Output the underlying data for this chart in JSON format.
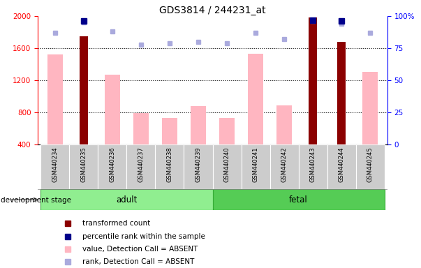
{
  "title": "GDS3814 / 244231_at",
  "samples": [
    "GSM440234",
    "GSM440235",
    "GSM440236",
    "GSM440237",
    "GSM440238",
    "GSM440239",
    "GSM440240",
    "GSM440241",
    "GSM440242",
    "GSM440243",
    "GSM440244",
    "GSM440245"
  ],
  "transformed_count": [
    null,
    1750,
    null,
    null,
    null,
    null,
    null,
    null,
    null,
    1980,
    1680,
    null
  ],
  "pct_rank_present": [
    null,
    96,
    null,
    null,
    null,
    null,
    null,
    null,
    null,
    97,
    96,
    null
  ],
  "value_absent": [
    1520,
    null,
    1270,
    790,
    730,
    880,
    730,
    1530,
    890,
    null,
    null,
    1310
  ],
  "rank_absent": [
    87,
    95,
    88,
    78,
    79,
    80,
    79,
    87,
    82,
    96,
    94,
    87
  ],
  "ylim_left": [
    400,
    2000
  ],
  "ylim_right": [
    0,
    100
  ],
  "yticks_left": [
    400,
    800,
    1200,
    1600,
    2000
  ],
  "yticks_right": [
    0,
    25,
    50,
    75,
    100
  ],
  "color_dark_red": "#8B0000",
  "color_dark_blue": "#00008B",
  "color_light_pink": "#FFB6C1",
  "color_light_blue": "#AAAADD",
  "color_gray_bg": "#CCCCCC",
  "color_adult": "#90EE90",
  "color_fetal": "#55CC55",
  "legend_items": [
    "transformed count",
    "percentile rank within the sample",
    "value, Detection Call = ABSENT",
    "rank, Detection Call = ABSENT"
  ],
  "legend_colors": [
    "#8B0000",
    "#00008B",
    "#FFB6C1",
    "#AAAADD"
  ],
  "n_adult": 6,
  "n_fetal": 6
}
